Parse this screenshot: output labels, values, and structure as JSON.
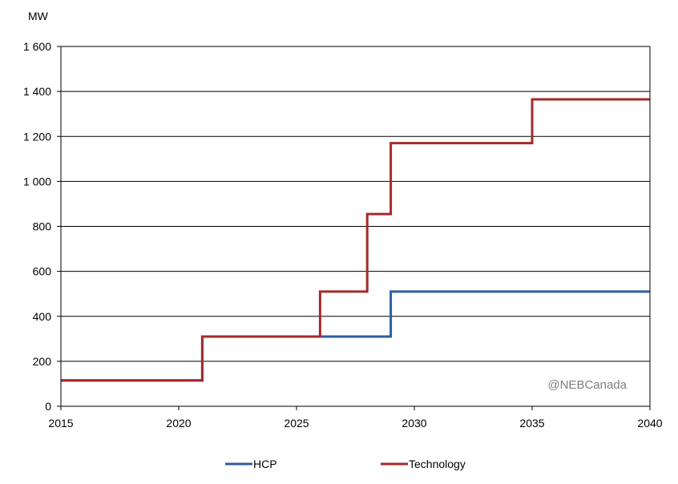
{
  "chart_data": {
    "type": "line",
    "step": true,
    "ylabel": "MW",
    "xlim": [
      2015,
      2040
    ],
    "ylim": [
      0,
      1600
    ],
    "xticks": [
      2015,
      2020,
      2025,
      2030,
      2035,
      2040
    ],
    "yticks": [
      0,
      200,
      400,
      600,
      800,
      1000,
      1200,
      1400,
      1600
    ],
    "ytick_labels": [
      "0",
      "200",
      "400",
      "600",
      "800",
      "1 000",
      "1 200",
      "1 400",
      "1 600"
    ],
    "grid": "horizontal",
    "legend_position": "bottom",
    "annotation": "@NEBCanada",
    "series": [
      {
        "name": "HCP",
        "color": "#2e5e9e",
        "x": [
          2015,
          2021,
          2026,
          2029,
          2040
        ],
        "y": [
          115,
          310,
          310,
          510,
          510
        ]
      },
      {
        "name": "Technology",
        "color": "#a52a2a",
        "x": [
          2015,
          2021,
          2026,
          2028,
          2029,
          2035,
          2040
        ],
        "y": [
          115,
          310,
          510,
          855,
          1170,
          1365,
          1365
        ]
      }
    ]
  }
}
